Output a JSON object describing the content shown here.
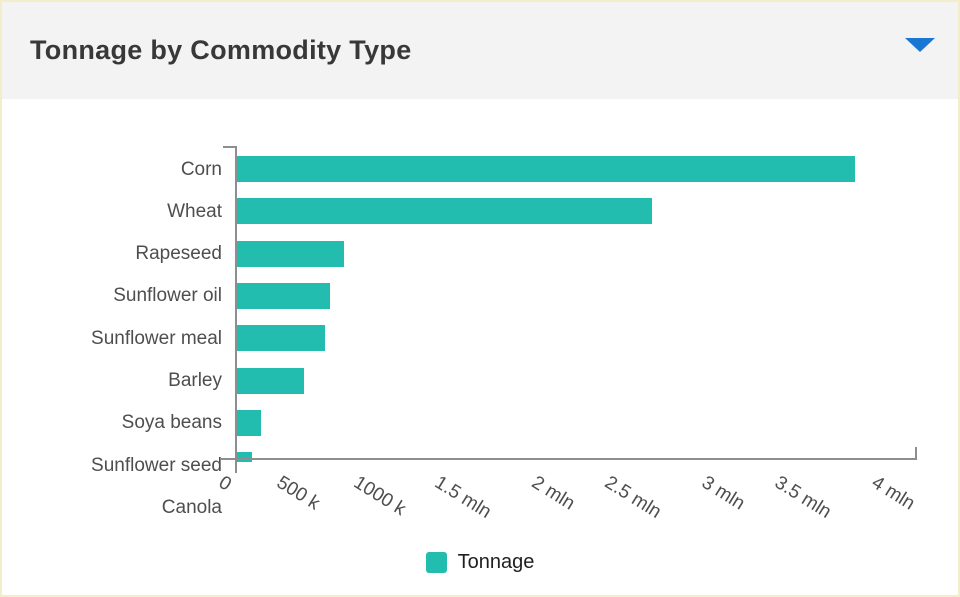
{
  "header": {
    "title": "Tonnage by Commodity Type"
  },
  "colors": {
    "bar": "#22bdae",
    "accent_blue": "#1877d2",
    "axis": "#8e8e8e",
    "label": "#4e4e4e",
    "title": "#383838",
    "header_bg": "#f3f3f3",
    "frame_border": "#f3edc9"
  },
  "chart_data": {
    "type": "bar",
    "orientation": "horizontal",
    "title": "Tonnage by Commodity Type",
    "xlabel": "",
    "ylabel": "",
    "xlim": [
      0,
      4000000
    ],
    "grid": false,
    "categories": [
      "Corn",
      "Wheat",
      "Rapeseed",
      "Sunflower oil",
      "Sunflower meal",
      "Barley",
      "Soya beans",
      "Sunflower seed",
      "Canola"
    ],
    "series": [
      {
        "name": "Tonnage",
        "values": [
          3635000,
          2440000,
          630000,
          545000,
          520000,
          395000,
          140000,
          90000,
          null
        ]
      }
    ],
    "x_ticks": [
      {
        "label": "0",
        "value": 0
      },
      {
        "label": "500 k",
        "value": 500000
      },
      {
        "label": "1000 k",
        "value": 1000000
      },
      {
        "label": "1.5 mln",
        "value": 1500000
      },
      {
        "label": "2 mln",
        "value": 2000000
      },
      {
        "label": "2.5 mln",
        "value": 2500000
      },
      {
        "label": "3 mln",
        "value": 3000000
      },
      {
        "label": "3.5 mln",
        "value": 3500000
      },
      {
        "label": "4 mln",
        "value": 4000000
      }
    ],
    "legend": {
      "position": "bottom",
      "entries": [
        "Tonnage"
      ]
    }
  },
  "legend": {
    "label": "Tonnage"
  }
}
